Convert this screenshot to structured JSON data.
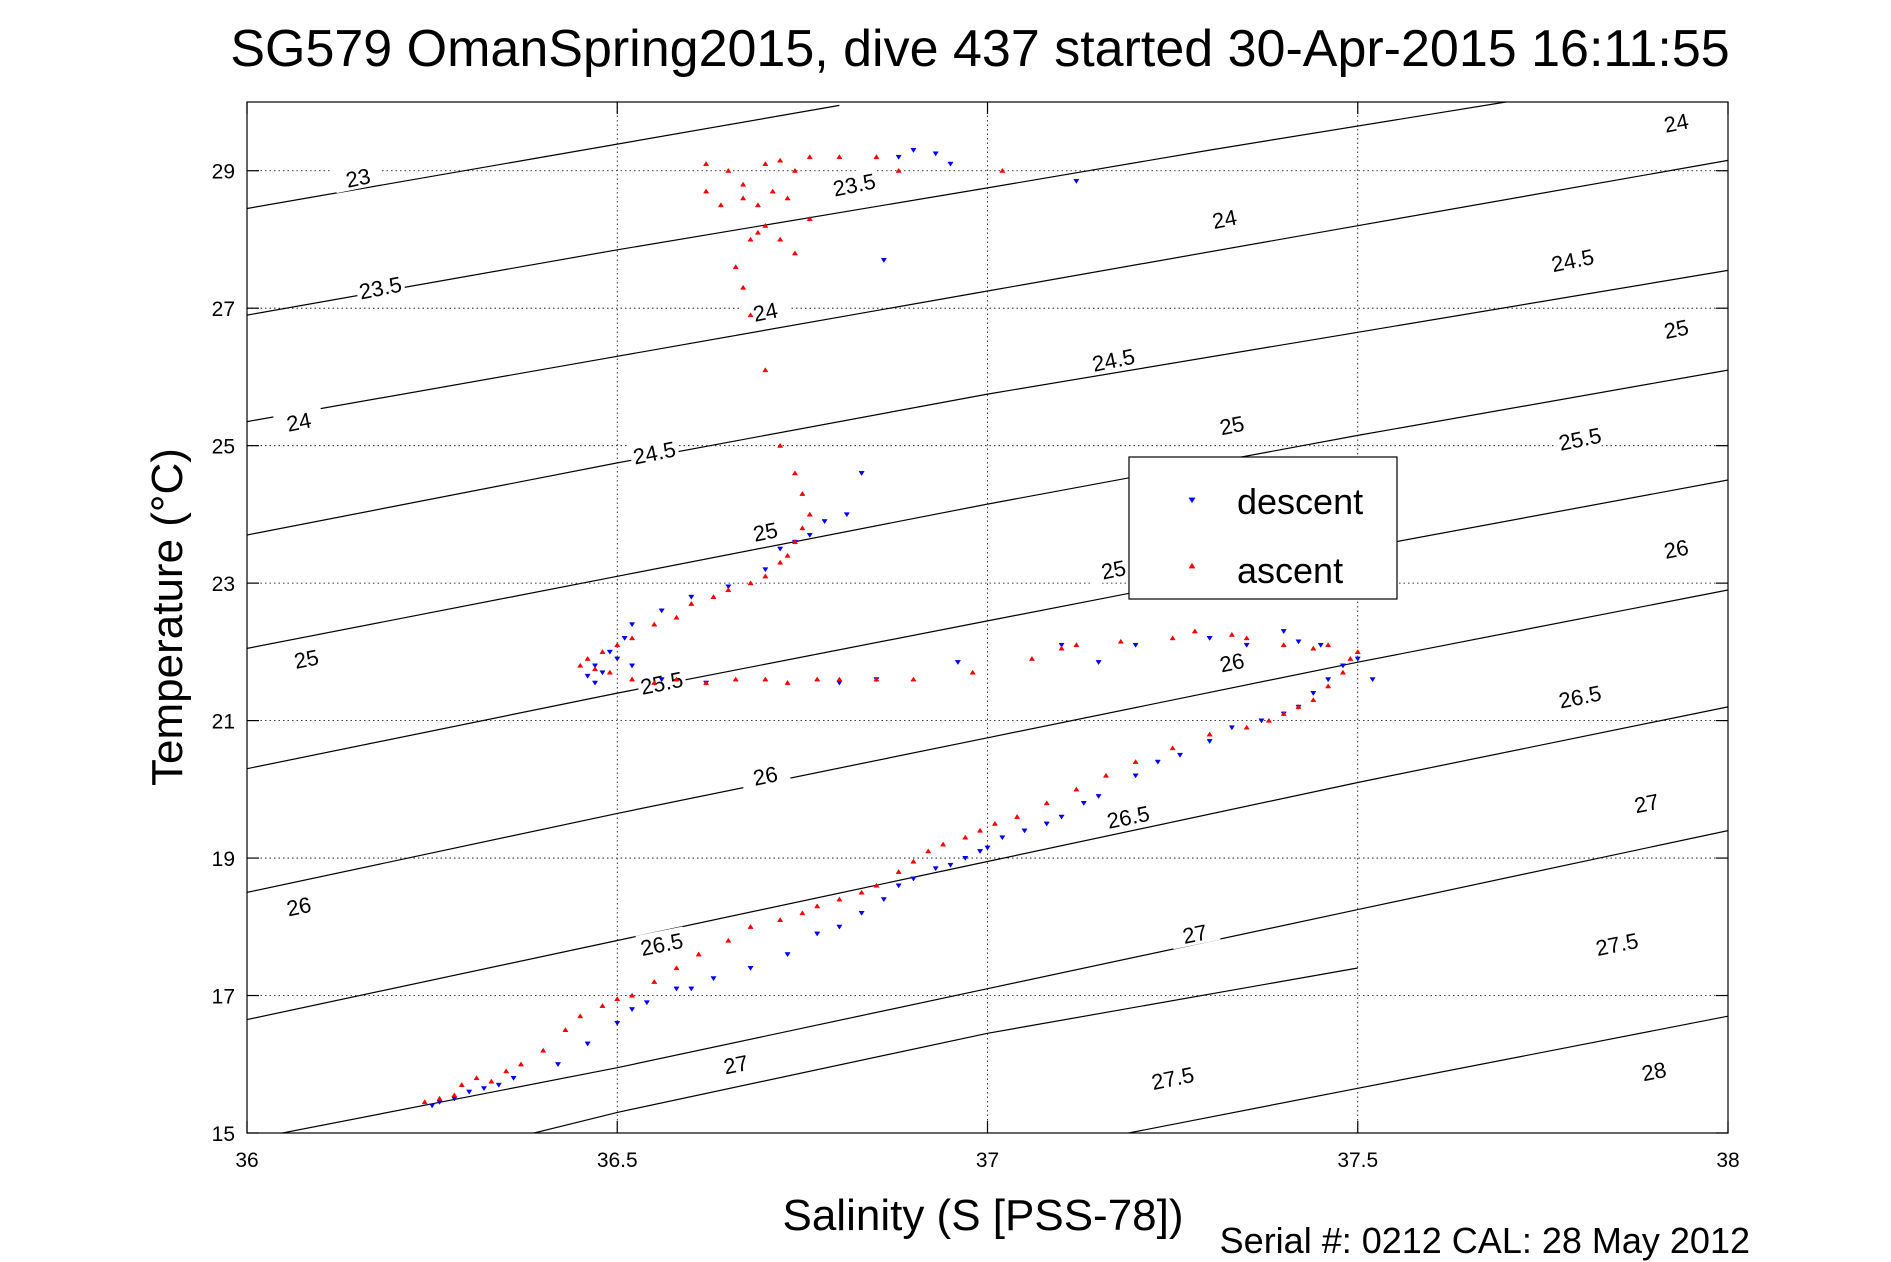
{
  "chart_data": {
    "type": "scatter",
    "title": "SG579 OmanSpring2015, dive 437 started 30-Apr-2015 16:11:55",
    "xlabel": "Salinity (S [PSS-78])",
    "ylabel": "Temperature (°C)",
    "xlim": [
      36,
      38
    ],
    "ylim": [
      15,
      30
    ],
    "x_ticks": [
      "36",
      "36.5",
      "37",
      "37.5",
      "38"
    ],
    "y_ticks": [
      "15",
      "17",
      "19",
      "21",
      "23",
      "25",
      "27",
      "29"
    ],
    "grid": true,
    "legend_position": "center-right",
    "footer": "Serial #: 0212  CAL: 28 May 2012",
    "series": [
      {
        "name": "descent",
        "marker": "triangle-down",
        "color": "#0000ff",
        "x": [
          36.25,
          36.26,
          36.28,
          36.3,
          36.32,
          36.34,
          36.36,
          36.42,
          36.46,
          36.5,
          36.52,
          36.54,
          36.58,
          36.6,
          36.63,
          36.68,
          36.73,
          36.77,
          36.8,
          36.83,
          36.86,
          36.88,
          36.9,
          36.93,
          36.95,
          36.97,
          36.99,
          37.0,
          37.02,
          37.05,
          37.08,
          37.1,
          37.13,
          37.15,
          37.2,
          37.23,
          37.26,
          37.3,
          37.33,
          37.37,
          37.4,
          37.42,
          37.44,
          37.46,
          37.48,
          37.5,
          37.52,
          37.45,
          37.42,
          37.4,
          37.35,
          37.3,
          37.2,
          37.15,
          37.1,
          36.96,
          36.85,
          36.8,
          36.62,
          36.56,
          36.52,
          36.5,
          36.48,
          36.47,
          36.46,
          36.47,
          36.49,
          36.51,
          36.52,
          36.56,
          36.6,
          36.65,
          36.7,
          36.72,
          36.74,
          36.76,
          36.78,
          36.81,
          36.83,
          36.86,
          36.88,
          36.9,
          36.93,
          36.95,
          37.12
        ],
        "y": [
          15.4,
          15.45,
          15.5,
          15.6,
          15.65,
          15.7,
          15.8,
          16.0,
          16.3,
          16.6,
          16.8,
          16.9,
          17.1,
          17.1,
          17.25,
          17.4,
          17.6,
          17.9,
          18.0,
          18.2,
          18.4,
          18.6,
          18.7,
          18.85,
          18.9,
          19.0,
          19.1,
          19.15,
          19.3,
          19.4,
          19.5,
          19.6,
          19.8,
          19.9,
          20.2,
          20.4,
          20.5,
          20.7,
          20.9,
          21.0,
          21.1,
          21.2,
          21.4,
          21.6,
          21.8,
          21.9,
          21.6,
          22.1,
          22.15,
          22.3,
          22.1,
          22.2,
          22.1,
          21.85,
          22.1,
          21.85,
          21.6,
          21.55,
          21.55,
          21.6,
          21.8,
          21.9,
          21.7,
          21.55,
          21.65,
          21.8,
          22.0,
          22.2,
          22.4,
          22.6,
          22.8,
          22.95,
          23.2,
          23.5,
          23.6,
          23.7,
          23.9,
          24.0,
          24.6,
          27.7,
          29.2,
          29.3,
          29.25,
          29.1,
          28.85
        ]
      },
      {
        "name": "ascent",
        "marker": "triangle-up",
        "color": "#ff0000",
        "x": [
          36.24,
          36.26,
          36.28,
          36.29,
          36.31,
          36.33,
          36.35,
          36.37,
          36.4,
          36.43,
          36.45,
          36.48,
          36.5,
          36.52,
          36.55,
          36.58,
          36.61,
          36.65,
          36.68,
          36.72,
          36.75,
          36.77,
          36.8,
          36.83,
          36.85,
          36.88,
          36.9,
          36.92,
          36.94,
          36.97,
          36.99,
          37.01,
          37.04,
          37.08,
          37.12,
          37.16,
          37.2,
          37.25,
          37.3,
          37.35,
          37.38,
          37.4,
          37.42,
          37.44,
          37.46,
          37.48,
          37.49,
          37.5,
          37.46,
          37.44,
          37.4,
          37.35,
          37.33,
          37.28,
          37.25,
          37.18,
          37.12,
          37.1,
          37.06,
          36.98,
          36.9,
          36.85,
          36.8,
          36.77,
          36.73,
          36.7,
          36.66,
          36.62,
          36.58,
          36.55,
          36.52,
          36.49,
          36.47,
          36.45,
          36.46,
          36.48,
          36.5,
          36.52,
          36.55,
          36.58,
          36.6,
          36.63,
          36.65,
          36.68,
          36.7,
          36.72,
          36.73,
          36.74,
          36.75,
          36.76,
          36.75,
          36.74,
          36.72,
          36.7,
          36.68,
          36.67,
          36.66,
          36.68,
          36.69,
          36.7,
          36.72,
          36.74,
          36.76,
          36.73,
          36.71,
          36.69,
          36.67,
          36.64,
          36.62,
          36.62,
          36.65,
          36.67,
          36.7,
          36.72,
          36.74,
          36.76,
          36.8,
          36.85,
          36.88,
          37.02
        ],
        "y": [
          15.45,
          15.5,
          15.55,
          15.7,
          15.8,
          15.75,
          15.9,
          16.0,
          16.2,
          16.5,
          16.7,
          16.85,
          16.95,
          17.0,
          17.2,
          17.4,
          17.6,
          17.8,
          18.0,
          18.1,
          18.2,
          18.3,
          18.4,
          18.5,
          18.6,
          18.8,
          18.95,
          19.1,
          19.2,
          19.3,
          19.4,
          19.5,
          19.6,
          19.8,
          20.0,
          20.2,
          20.4,
          20.6,
          20.8,
          20.9,
          21.0,
          21.1,
          21.2,
          21.3,
          21.5,
          21.7,
          21.9,
          22.0,
          22.1,
          22.05,
          22.1,
          22.2,
          22.25,
          22.3,
          22.2,
          22.15,
          22.1,
          22.05,
          21.9,
          21.7,
          21.6,
          21.6,
          21.6,
          21.6,
          21.55,
          21.6,
          21.6,
          21.55,
          21.6,
          21.55,
          21.6,
          21.7,
          21.75,
          21.8,
          21.9,
          22.0,
          22.1,
          22.2,
          22.4,
          22.5,
          22.7,
          22.8,
          22.9,
          23.0,
          23.1,
          23.3,
          23.4,
          23.6,
          23.8,
          24.0,
          24.3,
          24.6,
          25.0,
          26.1,
          26.9,
          27.3,
          27.6,
          28.0,
          28.1,
          28.2,
          28.0,
          27.8,
          28.3,
          28.6,
          28.7,
          28.5,
          28.6,
          28.5,
          28.7,
          29.1,
          29.0,
          28.8,
          29.1,
          29.15,
          29.0,
          29.2,
          29.2,
          29.2,
          29.0,
          29.0
        ]
      }
    ],
    "contour_lines": [
      {
        "level": "23",
        "points": [
          [
            36.0,
            28.45
          ],
          [
            36.4,
            29.2
          ],
          [
            36.8,
            29.95
          ]
        ]
      },
      {
        "level": "23.5",
        "points": [
          [
            36.0,
            26.9
          ],
          [
            36.5,
            27.85
          ],
          [
            37.0,
            28.75
          ],
          [
            37.3,
            29.3
          ],
          [
            37.7,
            30.0
          ]
        ]
      },
      {
        "level": "24",
        "points": [
          [
            36.0,
            25.35
          ],
          [
            36.5,
            26.3
          ],
          [
            37.0,
            27.25
          ],
          [
            37.5,
            28.2
          ],
          [
            38.0,
            29.15
          ]
        ]
      },
      {
        "level": "24.5",
        "points": [
          [
            36.0,
            23.7
          ],
          [
            36.5,
            24.75
          ],
          [
            37.0,
            25.75
          ],
          [
            37.5,
            26.65
          ],
          [
            38.0,
            27.55
          ]
        ]
      },
      {
        "level": "25",
        "points": [
          [
            36.0,
            22.05
          ],
          [
            36.5,
            23.1
          ],
          [
            37.0,
            24.15
          ],
          [
            37.5,
            25.15
          ],
          [
            38.0,
            26.1
          ]
        ]
      },
      {
        "level": "25.5",
        "points": [
          [
            36.0,
            20.3
          ],
          [
            36.5,
            21.4
          ],
          [
            37.0,
            22.45
          ],
          [
            37.5,
            23.5
          ],
          [
            38.0,
            24.5
          ]
        ]
      },
      {
        "level": "26",
        "points": [
          [
            36.0,
            18.5
          ],
          [
            36.5,
            19.65
          ],
          [
            37.0,
            20.75
          ],
          [
            37.5,
            21.85
          ],
          [
            38.0,
            22.9
          ]
        ]
      },
      {
        "level": "26.5",
        "points": [
          [
            36.0,
            16.65
          ],
          [
            36.5,
            17.8
          ],
          [
            37.0,
            18.95
          ],
          [
            37.5,
            20.1
          ],
          [
            38.0,
            21.2
          ]
        ]
      },
      {
        "level": "27",
        "points": [
          [
            36.0,
            14.9
          ],
          [
            36.5,
            15.95
          ],
          [
            37.0,
            17.1
          ],
          [
            37.5,
            18.25
          ],
          [
            38.0,
            19.4
          ]
        ]
      },
      {
        "level": "27.5",
        "points": [
          [
            36.35,
            14.9
          ],
          [
            36.5,
            15.3
          ],
          [
            37.0,
            16.45
          ],
          [
            37.5,
            17.4
          ]
        ]
      },
      {
        "level": "28",
        "points": [
          [
            37.0,
            14.6
          ],
          [
            37.5,
            15.65
          ],
          [
            38.0,
            16.7
          ]
        ]
      }
    ],
    "contour_labels": [
      {
        "text": "23",
        "x": 36.15,
        "y": 28.9
      },
      {
        "text": "23.5",
        "x": 36.18,
        "y": 27.3
      },
      {
        "text": "23.5",
        "x": 36.82,
        "y": 28.8
      },
      {
        "text": "24",
        "x": 36.07,
        "y": 25.35
      },
      {
        "text": "24",
        "x": 36.7,
        "y": 26.95
      },
      {
        "text": "24",
        "x": 37.32,
        "y": 28.3
      },
      {
        "text": "24",
        "x": 37.93,
        "y": 29.7
      },
      {
        "text": "24.5",
        "x": 36.55,
        "y": 24.9
      },
      {
        "text": "24.5",
        "x": 37.17,
        "y": 26.25
      },
      {
        "text": "24.5",
        "x": 37.79,
        "y": 27.7
      },
      {
        "text": "25",
        "x": 36.08,
        "y": 21.9
      },
      {
        "text": "25",
        "x": 36.7,
        "y": 23.75
      },
      {
        "text": "25",
        "x": 37.33,
        "y": 25.3
      },
      {
        "text": "25",
        "x": 37.93,
        "y": 26.7
      },
      {
        "text": "25",
        "x": 37.17,
        "y": 23.2
      },
      {
        "text": "25.5",
        "x": 36.56,
        "y": 21.55
      },
      {
        "text": "25.5",
        "x": 37.8,
        "y": 25.1
      },
      {
        "text": "26",
        "x": 36.07,
        "y": 18.3
      },
      {
        "text": "26",
        "x": 36.7,
        "y": 20.2
      },
      {
        "text": "26",
        "x": 37.33,
        "y": 21.85
      },
      {
        "text": "26",
        "x": 37.93,
        "y": 23.5
      },
      {
        "text": "26.5",
        "x": 36.56,
        "y": 17.75
      },
      {
        "text": "26.5",
        "x": 37.19,
        "y": 19.6
      },
      {
        "text": "26.5",
        "x": 37.8,
        "y": 21.35
      },
      {
        "text": "27",
        "x": 36.66,
        "y": 16.0
      },
      {
        "text": "27",
        "x": 37.28,
        "y": 17.9
      },
      {
        "text": "27",
        "x": 37.89,
        "y": 19.8
      },
      {
        "text": "27.5",
        "x": 37.25,
        "y": 15.8
      },
      {
        "text": "27.5",
        "x": 37.85,
        "y": 17.75
      },
      {
        "text": "28",
        "x": 37.9,
        "y": 15.9
      }
    ]
  }
}
